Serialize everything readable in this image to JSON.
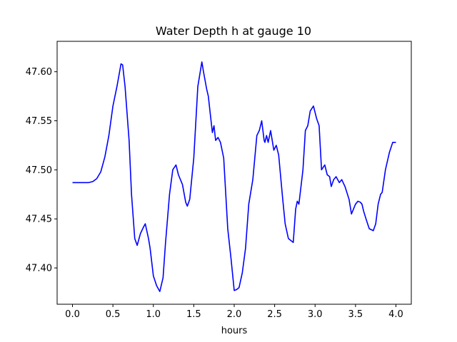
{
  "chart_data": {
    "type": "line",
    "title": "Water Depth h at gauge 10",
    "xlabel": "hours",
    "ylabel": "",
    "xlim": [
      -0.19,
      4.19
    ],
    "ylim": [
      47.363,
      47.631
    ],
    "xticks": [
      0.0,
      0.5,
      1.0,
      1.5,
      2.0,
      2.5,
      3.0,
      3.5,
      4.0
    ],
    "xtick_labels": [
      "0.0",
      "0.5",
      "1.0",
      "1.5",
      "2.0",
      "2.5",
      "3.0",
      "3.5",
      "4.0"
    ],
    "yticks": [
      47.4,
      47.45,
      47.5,
      47.55,
      47.6
    ],
    "ytick_labels": [
      "47.40",
      "47.45",
      "47.50",
      "47.55",
      "47.60"
    ],
    "grid": false,
    "series": [
      {
        "color": "#0000ff",
        "x": [
          0.0,
          0.1,
          0.2,
          0.25,
          0.3,
          0.35,
          0.4,
          0.45,
          0.5,
          0.55,
          0.6,
          0.62,
          0.65,
          0.7,
          0.73,
          0.77,
          0.8,
          0.84,
          0.88,
          0.9,
          0.94,
          0.96,
          1.0,
          1.04,
          1.08,
          1.12,
          1.15,
          1.2,
          1.24,
          1.28,
          1.31,
          1.36,
          1.4,
          1.42,
          1.45,
          1.5,
          1.55,
          1.6,
          1.62,
          1.66,
          1.68,
          1.7,
          1.73,
          1.75,
          1.77,
          1.8,
          1.83,
          1.87,
          1.92,
          1.96,
          2.0,
          2.03,
          2.06,
          2.1,
          2.14,
          2.18,
          2.23,
          2.28,
          2.31,
          2.34,
          2.37,
          2.38,
          2.4,
          2.42,
          2.45,
          2.47,
          2.49,
          2.52,
          2.55,
          2.6,
          2.63,
          2.67,
          2.7,
          2.73,
          2.76,
          2.78,
          2.8,
          2.85,
          2.88,
          2.91,
          2.94,
          2.98,
          3.02,
          3.05,
          3.08,
          3.12,
          3.15,
          3.18,
          3.2,
          3.23,
          3.26,
          3.3,
          3.33,
          3.37,
          3.42,
          3.45,
          3.5,
          3.53,
          3.56,
          3.58,
          3.6,
          3.63,
          3.67,
          3.72,
          3.75,
          3.78,
          3.81,
          3.83,
          3.87,
          3.92,
          3.96,
          4.0
        ],
        "y": [
          47.487,
          47.487,
          47.487,
          47.488,
          47.491,
          47.498,
          47.513,
          47.535,
          47.565,
          47.585,
          47.608,
          47.607,
          47.585,
          47.53,
          47.475,
          47.43,
          47.423,
          47.435,
          47.442,
          47.445,
          47.43,
          47.42,
          47.392,
          47.382,
          47.376,
          47.39,
          47.425,
          47.475,
          47.5,
          47.505,
          47.495,
          47.485,
          47.467,
          47.463,
          47.47,
          47.512,
          47.585,
          47.61,
          47.6,
          47.582,
          47.575,
          47.56,
          47.538,
          47.545,
          47.53,
          47.533,
          47.528,
          47.512,
          47.44,
          47.41,
          47.377,
          47.378,
          47.38,
          47.395,
          47.42,
          47.465,
          47.49,
          47.535,
          47.54,
          47.55,
          47.53,
          47.528,
          47.535,
          47.528,
          47.54,
          47.53,
          47.52,
          47.525,
          47.515,
          47.47,
          47.445,
          47.43,
          47.428,
          47.426,
          47.46,
          47.468,
          47.465,
          47.5,
          47.54,
          47.545,
          47.56,
          47.565,
          47.552,
          47.545,
          47.5,
          47.505,
          47.495,
          47.493,
          47.483,
          47.49,
          47.493,
          47.487,
          47.49,
          47.483,
          47.47,
          47.455,
          47.465,
          47.468,
          47.467,
          47.465,
          47.458,
          47.45,
          47.44,
          47.438,
          47.445,
          47.465,
          47.475,
          47.477,
          47.5,
          47.518,
          47.528,
          47.528
        ]
      }
    ]
  }
}
